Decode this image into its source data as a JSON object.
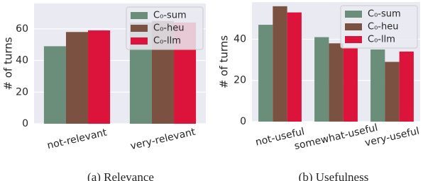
{
  "chart_data": [
    {
      "type": "bar",
      "ylabel": "# of turns",
      "caption": "(a) Relevance",
      "categories": [
        "not-relevant",
        "very-relevant"
      ],
      "series": [
        {
          "name": "C₀-sum",
          "color": "#6b8e7b",
          "values": [
            49,
            64
          ]
        },
        {
          "name": "C₀-heu",
          "color": "#7b5141",
          "values": [
            58,
            65
          ]
        },
        {
          "name": "C₀-llm",
          "color": "#dc143c",
          "values": [
            59,
            64
          ]
        }
      ],
      "ylim": [
        0,
        76
      ],
      "yticks": [
        0,
        20,
        40,
        60
      ],
      "grid": true,
      "legend": "upper right"
    },
    {
      "type": "bar",
      "ylabel": "# of turns",
      "caption": "(b) Usefulness",
      "categories": [
        "not-useful",
        "somewhat-useful",
        "very-useful"
      ],
      "series": [
        {
          "name": "C₀-sum",
          "color": "#6b8e7b",
          "values": [
            47,
            41,
            35
          ]
        },
        {
          "name": "C₀-heu",
          "color": "#7b5141",
          "values": [
            56,
            38,
            29
          ]
        },
        {
          "name": "C₀-llm",
          "color": "#dc143c",
          "values": [
            53,
            36,
            34
          ]
        }
      ],
      "ylim": [
        0,
        58
      ],
      "yticks": [
        0,
        20,
        40
      ],
      "grid": true,
      "legend": "upper right"
    }
  ]
}
